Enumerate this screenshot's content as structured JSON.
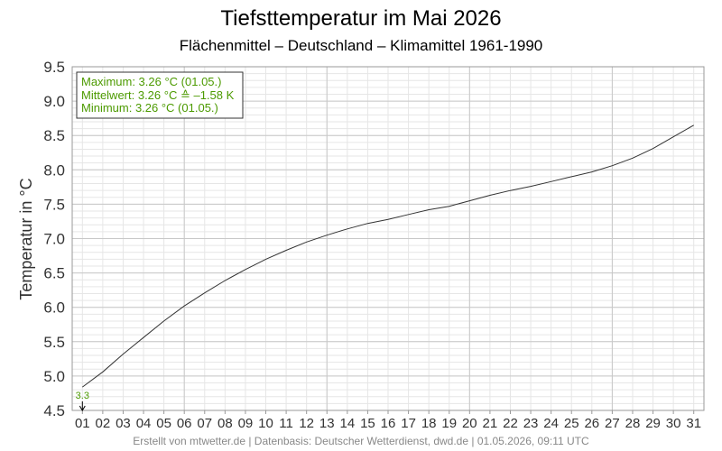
{
  "chart_data": {
    "type": "line",
    "title": "Tiefsttemperatur im Mai 2026",
    "subtitle": "Flächenmittel – Deutschland – Klimamittel 1961-1990",
    "ylabel": "Temperatur in °C",
    "xlabel": "",
    "ylim": [
      4.5,
      9.5
    ],
    "yticks": [
      "4.5",
      "5.0",
      "5.5",
      "6.0",
      "6.5",
      "7.0",
      "7.5",
      "8.0",
      "8.5",
      "9.0",
      "9.5"
    ],
    "categories": [
      "01",
      "02",
      "03",
      "04",
      "05",
      "06",
      "07",
      "08",
      "09",
      "10",
      "11",
      "12",
      "13",
      "14",
      "15",
      "16",
      "17",
      "18",
      "19",
      "20",
      "21",
      "22",
      "23",
      "24",
      "25",
      "26",
      "27",
      "28",
      "29",
      "30",
      "31"
    ],
    "grid": true,
    "series": [
      {
        "values": [
          4.84,
          5.06,
          5.32,
          5.56,
          5.8,
          6.02,
          6.21,
          6.39,
          6.55,
          6.7,
          6.83,
          6.95,
          7.05,
          7.14,
          7.22,
          7.28,
          7.35,
          7.42,
          7.47,
          7.55,
          7.63,
          7.7,
          7.76,
          7.83,
          7.9,
          7.97,
          8.06,
          8.17,
          8.31,
          8.48,
          8.65
        ]
      }
    ],
    "legend": {
      "position": "top-left",
      "lines": [
        "Maximum: 3.26 °C  (01.05.)",
        "Mittelwert:  3.26 °C  ≙ –1.58 K",
        "Minimum:  3.26 °C  (01.05.)"
      ]
    },
    "annotation": {
      "category": "01",
      "label": "3.3"
    },
    "footer": "Erstellt von mtwetter.de | Datenbasis: Deutscher Wetterdienst, dwd.de | 01.05.2026, 09:11 UTC"
  },
  "colors": {
    "line": "#333333",
    "legend_text": "#4c9a00",
    "annotation": "#4c9a00",
    "grid_major": "#c8c8c8",
    "grid_minor": "#e6e6e6"
  }
}
